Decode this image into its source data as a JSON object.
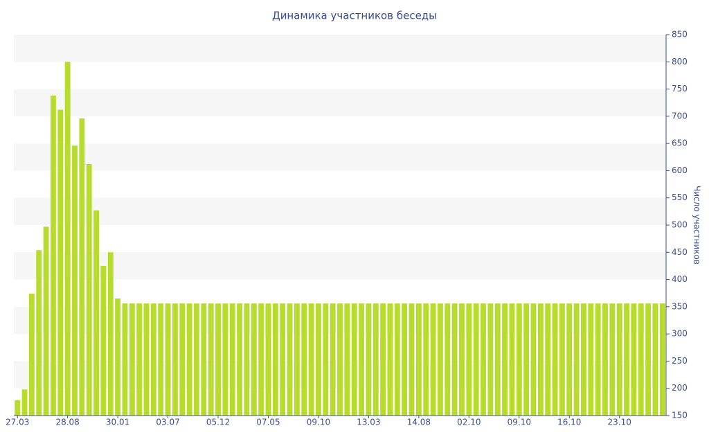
{
  "chart_data": {
    "type": "bar",
    "title": "Динамика участников беседы",
    "y_label": "Число участников",
    "categories": [
      "27.03",
      null,
      null,
      null,
      null,
      null,
      null,
      "28.08",
      null,
      null,
      null,
      null,
      null,
      null,
      "30.01",
      null,
      null,
      null,
      null,
      null,
      null,
      "03.07",
      null,
      null,
      null,
      null,
      null,
      null,
      "05.12",
      null,
      null,
      null,
      null,
      null,
      null,
      "07.05",
      null,
      null,
      null,
      null,
      null,
      null,
      "09.10",
      null,
      null,
      null,
      null,
      null,
      null,
      "13.03",
      null,
      null,
      null,
      null,
      null,
      null,
      "14.08",
      null,
      null,
      null,
      null,
      null,
      null,
      "02.10",
      null,
      null,
      null,
      null,
      null,
      null,
      "09.10",
      null,
      null,
      null,
      null,
      null,
      null,
      "16.10",
      null,
      null,
      null,
      null,
      null,
      null,
      "23.10",
      null,
      null,
      null,
      null,
      null,
      null
    ],
    "values": [
      178,
      198,
      374,
      454,
      497,
      738,
      712,
      800,
      646,
      696,
      612,
      527,
      425,
      450,
      365,
      356,
      356,
      356,
      356,
      356,
      356,
      356,
      356,
      356,
      356,
      356,
      356,
      356,
      356,
      356,
      356,
      356,
      356,
      356,
      356,
      356,
      356,
      356,
      356,
      356,
      356,
      356,
      356,
      356,
      356,
      356,
      356,
      356,
      356,
      356,
      356,
      356,
      356,
      356,
      356,
      356,
      356,
      356,
      356,
      356,
      356,
      356,
      356,
      356,
      356,
      356,
      356,
      356,
      356,
      356,
      356,
      356,
      356,
      356,
      356,
      356,
      356,
      356,
      356,
      356,
      356,
      356,
      356,
      356,
      356,
      356,
      356,
      356,
      356,
      356,
      356
    ],
    "color": "#b8dc2e",
    "ylim": [
      150,
      850
    ],
    "yticks": [
      150,
      200,
      250,
      300,
      350,
      400,
      450,
      500,
      550,
      600,
      650,
      700,
      750,
      800,
      850
    ],
    "grid": true,
    "y_axis_side": "right"
  }
}
